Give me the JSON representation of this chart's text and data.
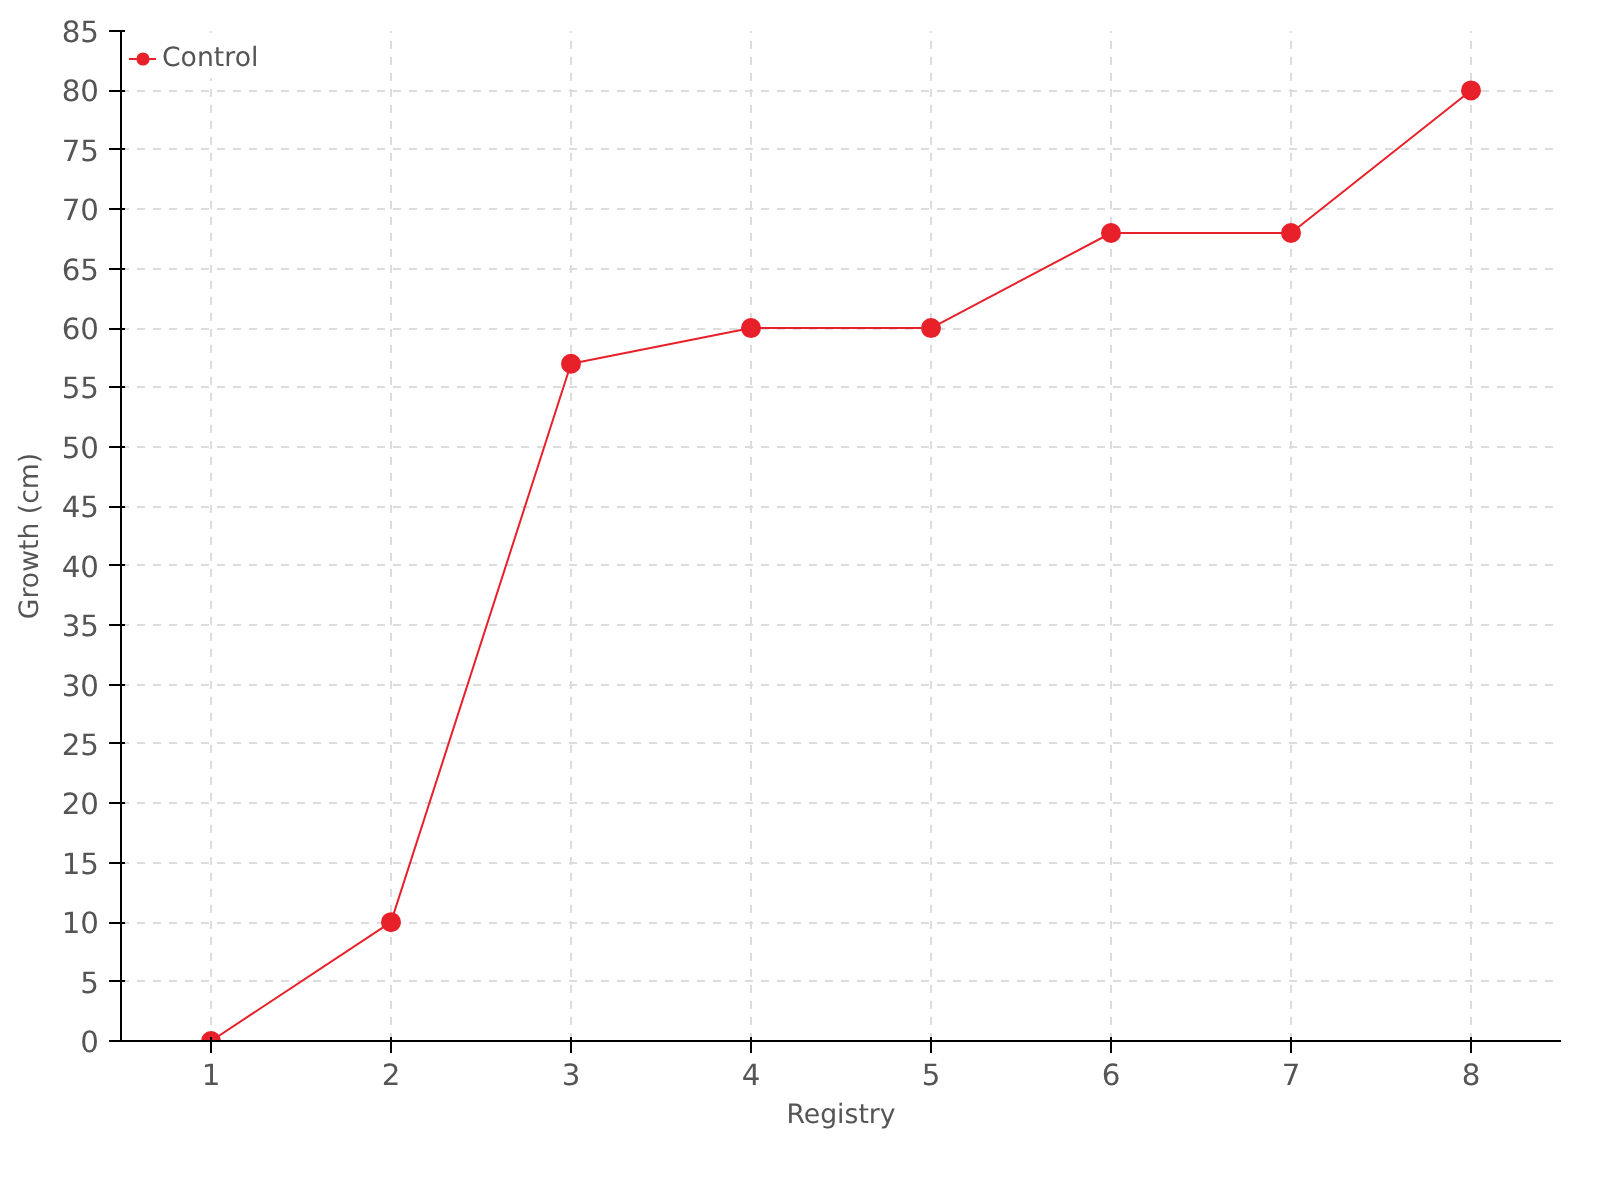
{
  "chart_data": {
    "type": "line",
    "xlabel": "Registry",
    "ylabel": "Growth (cm)",
    "x": [
      1,
      2,
      3,
      4,
      5,
      6,
      7,
      8
    ],
    "series": [
      {
        "name": "Control",
        "color": "#e8202a",
        "values": [
          0,
          10,
          57,
          60,
          60,
          68,
          68,
          80
        ]
      }
    ],
    "xlim": [
      0.5,
      8.5
    ],
    "xticks": [
      1,
      2,
      3,
      4,
      5,
      6,
      7,
      8
    ],
    "ylim": [
      0,
      85
    ],
    "yticks": [
      0,
      5,
      10,
      15,
      20,
      25,
      30,
      35,
      40,
      45,
      50,
      55,
      60,
      65,
      70,
      75,
      80,
      85
    ],
    "grid": true,
    "legend": "top left",
    "marker": "circle",
    "line_style": "solid"
  }
}
